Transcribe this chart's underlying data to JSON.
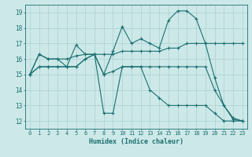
{
  "bg_color": "#cde8e8",
  "line_color": "#1a7070",
  "grid_color": "#b0d4d4",
  "xlabel": "Humidex (Indice chaleur)",
  "xlim": [
    -0.5,
    23.5
  ],
  "ylim": [
    11.5,
    19.5
  ],
  "xticks": [
    0,
    1,
    2,
    3,
    4,
    5,
    6,
    7,
    8,
    9,
    10,
    11,
    12,
    13,
    14,
    15,
    16,
    17,
    18,
    19,
    20,
    21,
    22,
    23
  ],
  "yticks": [
    12,
    13,
    14,
    15,
    16,
    17,
    18,
    19
  ],
  "lines": [
    {
      "x": [
        0,
        1,
        2,
        3,
        4,
        5,
        6,
        7,
        8,
        9,
        10,
        11,
        12,
        13,
        14,
        15,
        16,
        17,
        18,
        19,
        20,
        21,
        22,
        23
      ],
      "y": [
        15.0,
        16.3,
        16.0,
        16.0,
        15.5,
        16.9,
        16.3,
        16.3,
        15.0,
        16.5,
        18.1,
        17.0,
        17.3,
        17.0,
        16.7,
        18.5,
        19.1,
        19.1,
        18.6,
        17.0,
        17.0,
        17.0,
        17.0,
        17.0
      ]
    },
    {
      "x": [
        0,
        1,
        2,
        3,
        4,
        5,
        6,
        7,
        8,
        9,
        10,
        11,
        12,
        13,
        14,
        15,
        16,
        17,
        18,
        19,
        20,
        21,
        22,
        23
      ],
      "y": [
        15.0,
        16.3,
        16.0,
        16.0,
        16.0,
        16.2,
        16.3,
        16.3,
        16.3,
        16.3,
        16.5,
        16.5,
        16.5,
        16.5,
        16.5,
        16.7,
        16.7,
        17.0,
        17.0,
        17.0,
        14.8,
        13.0,
        12.1,
        12.0
      ]
    },
    {
      "x": [
        0,
        1,
        2,
        3,
        4,
        5,
        6,
        7,
        8,
        9,
        10,
        11,
        12,
        13,
        14,
        15,
        16,
        17,
        18,
        19,
        20,
        21,
        22,
        23
      ],
      "y": [
        15.0,
        15.5,
        15.5,
        15.5,
        15.5,
        15.5,
        16.0,
        16.3,
        15.0,
        15.2,
        15.5,
        15.5,
        15.5,
        15.5,
        15.5,
        15.5,
        15.5,
        15.5,
        15.5,
        15.5,
        14.0,
        13.0,
        12.2,
        12.0
      ]
    },
    {
      "x": [
        0,
        1,
        2,
        3,
        4,
        5,
        6,
        7,
        8,
        9,
        10,
        11,
        12,
        13,
        14,
        15,
        16,
        17,
        18,
        19,
        20,
        21,
        22,
        23
      ],
      "y": [
        15.0,
        15.5,
        15.5,
        15.5,
        15.5,
        15.5,
        16.0,
        16.3,
        12.5,
        12.5,
        15.5,
        15.5,
        15.5,
        14.0,
        13.5,
        13.0,
        13.0,
        13.0,
        13.0,
        13.0,
        12.5,
        12.0,
        12.0,
        12.0
      ]
    }
  ]
}
